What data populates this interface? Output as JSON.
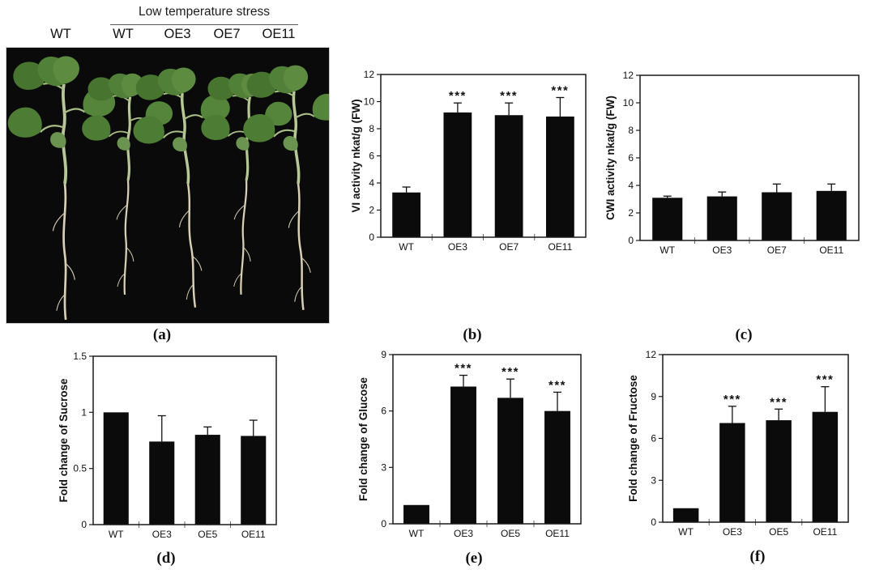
{
  "photo_panel": {
    "stress_group_label": "Low temperature stress",
    "column_labels": [
      "WT",
      "WT",
      "OE3",
      "OE7",
      "OE11"
    ],
    "panel_label": "(a)"
  },
  "colors": {
    "bar": "#0b0b0b",
    "axis": "#1a1a1a",
    "error_bar": "#111111",
    "minor_tick": "#666666",
    "photo_background": "#0a0a0a",
    "leaf_green": "#4d7c34"
  },
  "chart_data": [
    {
      "id": "b",
      "type": "bar",
      "panel_label": "(b)",
      "ylabel": "VI activity nkat/g (FW)",
      "xlabel": "",
      "ylim": [
        0,
        12
      ],
      "yticks": [
        0,
        2,
        4,
        6,
        8,
        10,
        12
      ],
      "ytick_labels": [
        "0",
        "2",
        "4",
        "6",
        "8",
        "10",
        "12"
      ],
      "categories": [
        "WT",
        "OE3",
        "OE7",
        "OE11"
      ],
      "values": [
        3.3,
        9.2,
        9.0,
        8.9
      ],
      "errors": [
        0.4,
        0.7,
        0.9,
        1.4
      ],
      "significance": [
        "",
        "***",
        "***",
        "***"
      ],
      "grid": false,
      "legend": false
    },
    {
      "id": "c",
      "type": "bar",
      "panel_label": "(c)",
      "ylabel": "CWI activity nkat/g (FW)",
      "xlabel": "",
      "ylim": [
        0,
        12
      ],
      "yticks": [
        0,
        2,
        4,
        6,
        8,
        10,
        12
      ],
      "ytick_labels": [
        "0",
        "2",
        "4",
        "6",
        "8",
        "10",
        "12"
      ],
      "categories": [
        "WT",
        "OE3",
        "OE7",
        "OE11"
      ],
      "values": [
        3.1,
        3.2,
        3.5,
        3.6
      ],
      "errors": [
        0.12,
        0.32,
        0.6,
        0.5
      ],
      "significance": [
        "",
        "",
        "",
        ""
      ],
      "grid": false,
      "legend": false
    },
    {
      "id": "d",
      "type": "bar",
      "panel_label": "(d)",
      "ylabel": "Fold change of Sucrose",
      "xlabel": "",
      "ylim": [
        0,
        1.5
      ],
      "yticks": [
        0,
        0.5,
        1,
        1.5
      ],
      "ytick_labels": [
        "0",
        "0.5",
        "1",
        "1.5"
      ],
      "categories": [
        "WT",
        "OE3",
        "OE5",
        "OE11"
      ],
      "values": [
        1.0,
        0.74,
        0.8,
        0.79
      ],
      "errors": [
        0,
        0.23,
        0.07,
        0.14
      ],
      "significance": [
        "",
        "",
        "",
        ""
      ],
      "grid": false,
      "legend": false
    },
    {
      "id": "e",
      "type": "bar",
      "panel_label": "(e)",
      "ylabel": "Fold change of Glucose",
      "xlabel": "",
      "ylim": [
        0,
        9
      ],
      "yticks": [
        0,
        3,
        6,
        9
      ],
      "ytick_labels": [
        "0",
        "3",
        "6",
        "9"
      ],
      "categories": [
        "WT",
        "OE3",
        "OE5",
        "OE11"
      ],
      "values": [
        1.0,
        7.3,
        6.7,
        6.0
      ],
      "errors": [
        0,
        0.6,
        1.0,
        1.0
      ],
      "significance": [
        "",
        "***",
        "***",
        "***"
      ],
      "grid": false,
      "legend": false
    },
    {
      "id": "f",
      "type": "bar",
      "panel_label": "(f)",
      "ylabel": "Fold change of Fructose",
      "xlabel": "",
      "ylim": [
        0,
        12
      ],
      "yticks": [
        0,
        3,
        6,
        9,
        12
      ],
      "ytick_labels": [
        "0",
        "3",
        "6",
        "9",
        "12"
      ],
      "categories": [
        "WT",
        "OE3",
        "OE5",
        "OE11"
      ],
      "values": [
        1.0,
        7.1,
        7.3,
        7.9
      ],
      "errors": [
        0,
        1.2,
        0.8,
        1.8
      ],
      "significance": [
        "",
        "***",
        "***",
        "***"
      ],
      "grid": false,
      "legend": false
    }
  ]
}
